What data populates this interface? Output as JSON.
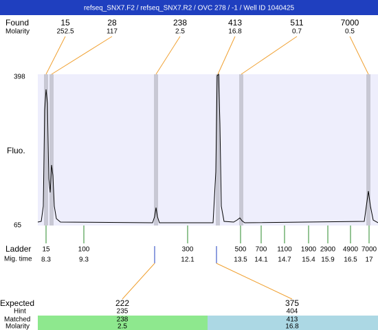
{
  "header": {
    "title": "refseq_SNX7.F2 / refseq_SNX7.R2 / OVC 278 / -1 / Well ID 1040425"
  },
  "found": {
    "label": "Found",
    "molarity_label": "Molarity",
    "peaks": [
      {
        "size": 15,
        "molarity": 252.5
      },
      {
        "size": 28,
        "molarity": 117
      },
      {
        "size": 238,
        "molarity": 2.5
      },
      {
        "size": 413,
        "molarity": 16.8
      },
      {
        "size": 511,
        "molarity": 0.7
      },
      {
        "size": 7000,
        "molarity": 0.5
      }
    ]
  },
  "axis": {
    "label": "Fluo.",
    "max": 398,
    "min": 65
  },
  "ladder": {
    "label": "Ladder",
    "time_label": "Mig. time",
    "peaks": [
      {
        "size": 15,
        "time": 8.3
      },
      {
        "size": 100,
        "time": 9.3
      },
      {
        "size": 300,
        "time": 12.1
      },
      {
        "size": 500,
        "time": 13.5
      },
      {
        "size": 700,
        "time": 14.1
      },
      {
        "size": 1100,
        "time": 14.7
      },
      {
        "size": 1900,
        "time": 15.4
      },
      {
        "size": 2900,
        "time": 15.9
      },
      {
        "size": 4900,
        "time": 16.5
      },
      {
        "size": 7000,
        "time": 17
      }
    ]
  },
  "expected": {
    "label": "Expected",
    "hint_label": "Hint",
    "matched_label": "Matched",
    "molarity_label": "Molarity",
    "items": [
      {
        "size": 222,
        "hint": 235,
        "matched": 238,
        "molarity": 2.5
      },
      {
        "size": 375,
        "hint": 404,
        "matched": 413,
        "molarity": 16.8
      }
    ]
  }
}
